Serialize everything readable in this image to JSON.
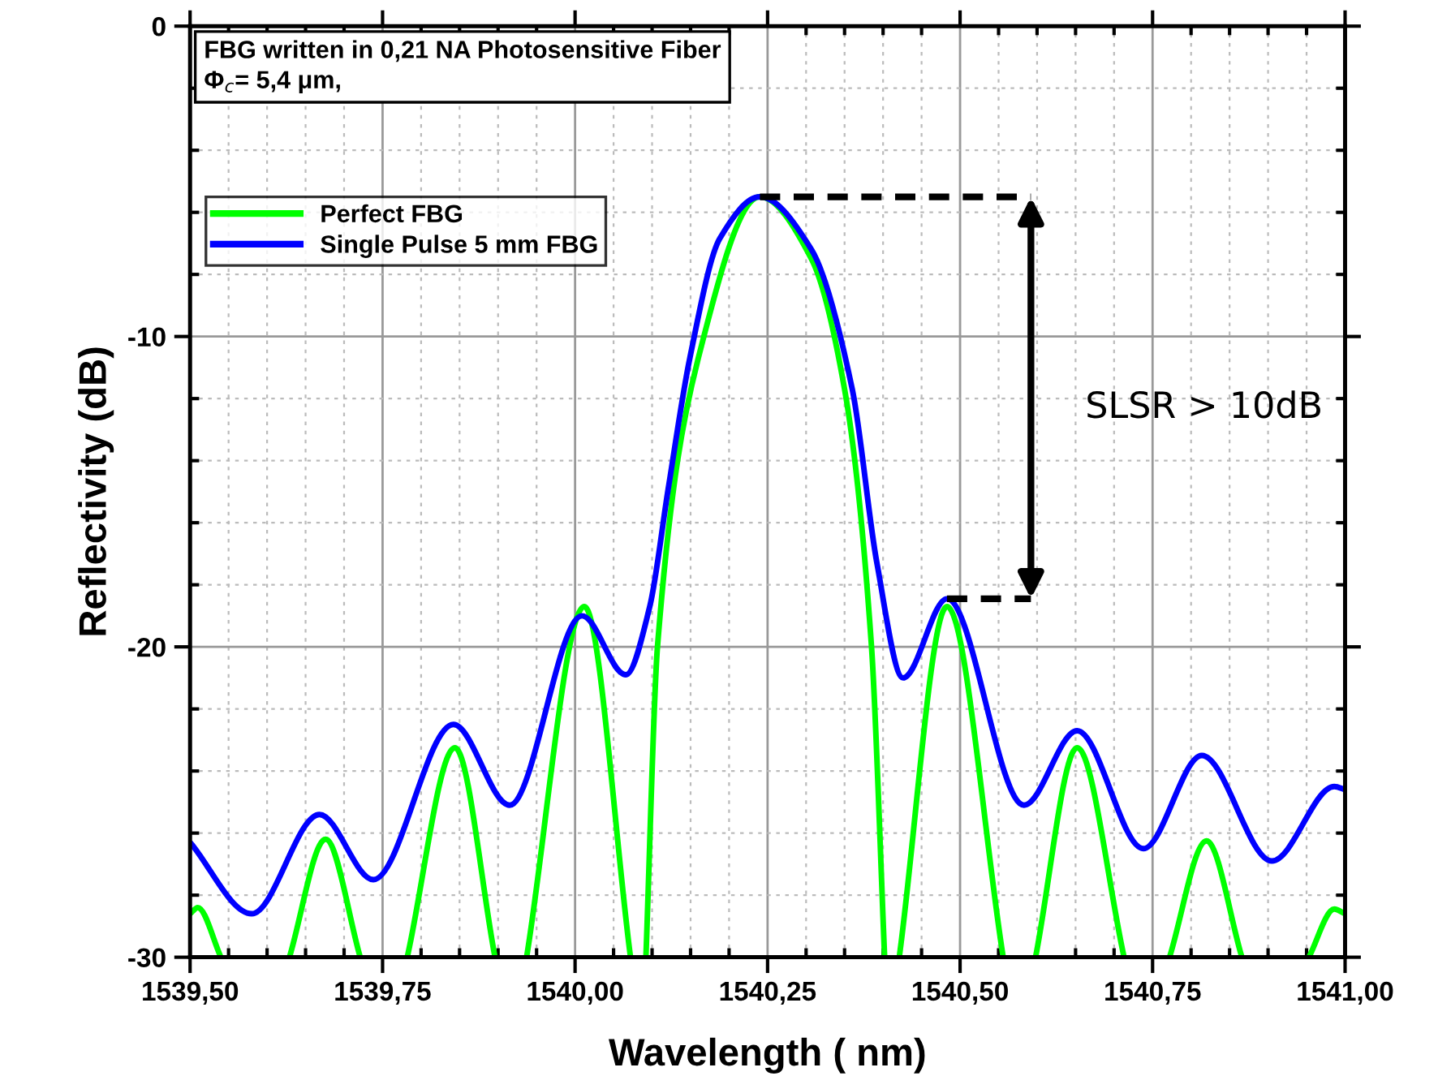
{
  "chart_data": {
    "type": "line",
    "xlabel": "Wavelength ( nm)",
    "ylabel": "Reflectivity (dB)",
    "xlim": [
      1539.5,
      1541.0
    ],
    "ylim": [
      -30,
      0
    ],
    "xticks": [
      {
        "value": 1539.5,
        "label": "1539,50"
      },
      {
        "value": 1539.75,
        "label": "1539,75"
      },
      {
        "value": 1540.0,
        "label": "1540,00"
      },
      {
        "value": 1540.25,
        "label": "1540,25"
      },
      {
        "value": 1540.5,
        "label": "1540,50"
      },
      {
        "value": 1540.75,
        "label": "1540,75"
      },
      {
        "value": 1541.0,
        "label": "1541,00"
      }
    ],
    "yticks": [
      0,
      -10,
      -20,
      -30
    ],
    "grid": true,
    "legend": "top left",
    "line_style": "solid",
    "marker": "none",
    "series": [
      {
        "name": "Perfect FBG",
        "color": "#00ff00",
        "x": [
          1539.5,
          1539.51,
          1539.54,
          null,
          1539.629,
          1539.676,
          1539.721,
          null,
          1539.782,
          1539.844,
          1539.896,
          null,
          1539.937,
          1540.012,
          1540.072,
          null,
          1540.092,
          1540.107,
          1540.16,
          1540.24,
          1540.307,
          1540.35,
          1540.385,
          1540.402,
          null,
          1540.421,
          1540.483,
          1540.556,
          null,
          1540.598,
          1540.652,
          1540.713,
          null,
          1540.772,
          1540.82,
          1540.866,
          null,
          1540.953,
          1540.986,
          1541.0
        ],
        "values": [
          -28.6,
          -28.4,
          -30,
          null,
          -30,
          -26.2,
          -30,
          null,
          -30,
          -23.25,
          -30,
          null,
          -30,
          -18.7,
          -30,
          null,
          -30,
          -20.0,
          -10.7,
          -5.5,
          -7.5,
          -11.7,
          -20.0,
          -30,
          null,
          -30,
          -18.7,
          -30,
          null,
          -30,
          -23.25,
          -30,
          null,
          -30,
          -26.25,
          -30,
          null,
          -30,
          -28.45,
          -28.6
        ]
      },
      {
        "name": "Single Pulse 5 mm FBG",
        "color": "#0000ff",
        "x": [
          1539.5,
          1539.58,
          1539.668,
          1539.738,
          1539.842,
          1539.915,
          1540.009,
          1540.066,
          1540.097,
          1540.121,
          1540.149,
          1540.188,
          1540.24,
          1540.307,
          1540.36,
          1540.392,
          1540.426,
          1540.483,
          1540.583,
          1540.652,
          1540.738,
          1540.814,
          1540.905,
          1540.986,
          1541.0
        ],
        "values": [
          -26.3,
          -28.6,
          -25.4,
          -27.5,
          -22.5,
          -25.1,
          -19.0,
          -20.9,
          -18.7,
          -14.9,
          -10.7,
          -6.84,
          -5.5,
          -7.2,
          -11.7,
          -17.3,
          -21.0,
          -18.45,
          -25.1,
          -22.7,
          -26.5,
          -23.5,
          -26.9,
          -24.5,
          -24.6
        ]
      }
    ],
    "annotations": [
      "FBG written in 0,21 NA Photosensitive Fiber",
      "Φ$_{c}$= 5,4 μm,",
      "SLSR > 10dB"
    ]
  }
}
